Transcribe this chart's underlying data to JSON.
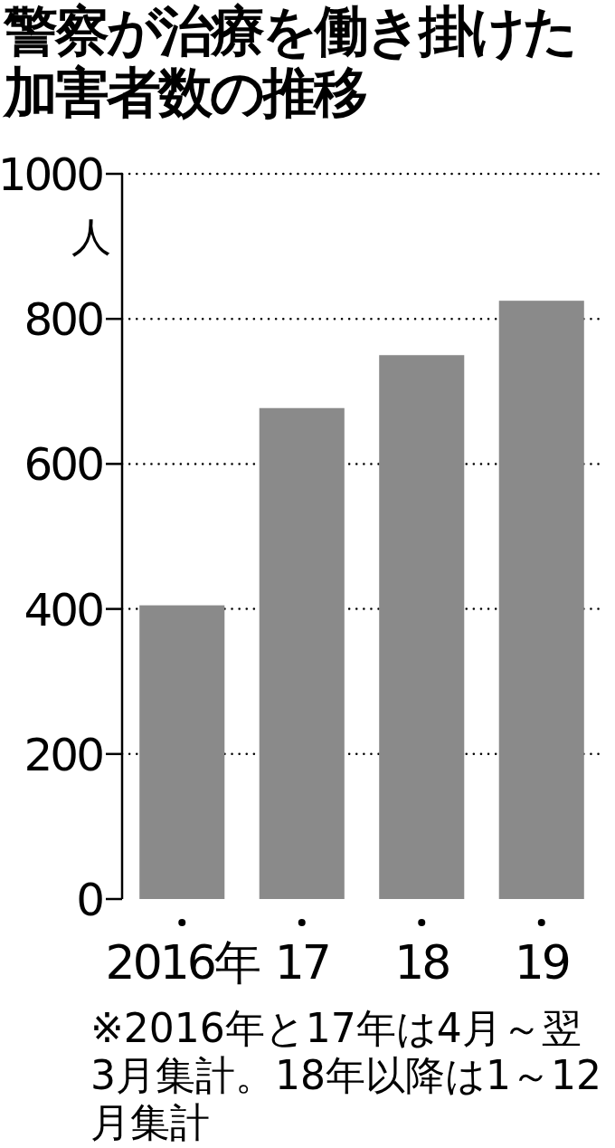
{
  "chart_data": {
    "type": "bar",
    "title": "警察が治療を働き掛けた加害者数の推移",
    "ylabel": "人",
    "categories": [
      "2016年",
      "17",
      "18",
      "19"
    ],
    "values": [
      405,
      677,
      750,
      825
    ],
    "color": "#8a8a8a",
    "ylim": [
      0,
      1000
    ],
    "yticks": [
      0,
      200,
      400,
      600,
      800,
      1000
    ],
    "grid": "y",
    "annotations": [
      "※2016年と17年は4月～翌3月集計。18年以降は1～12月集計"
    ]
  }
}
